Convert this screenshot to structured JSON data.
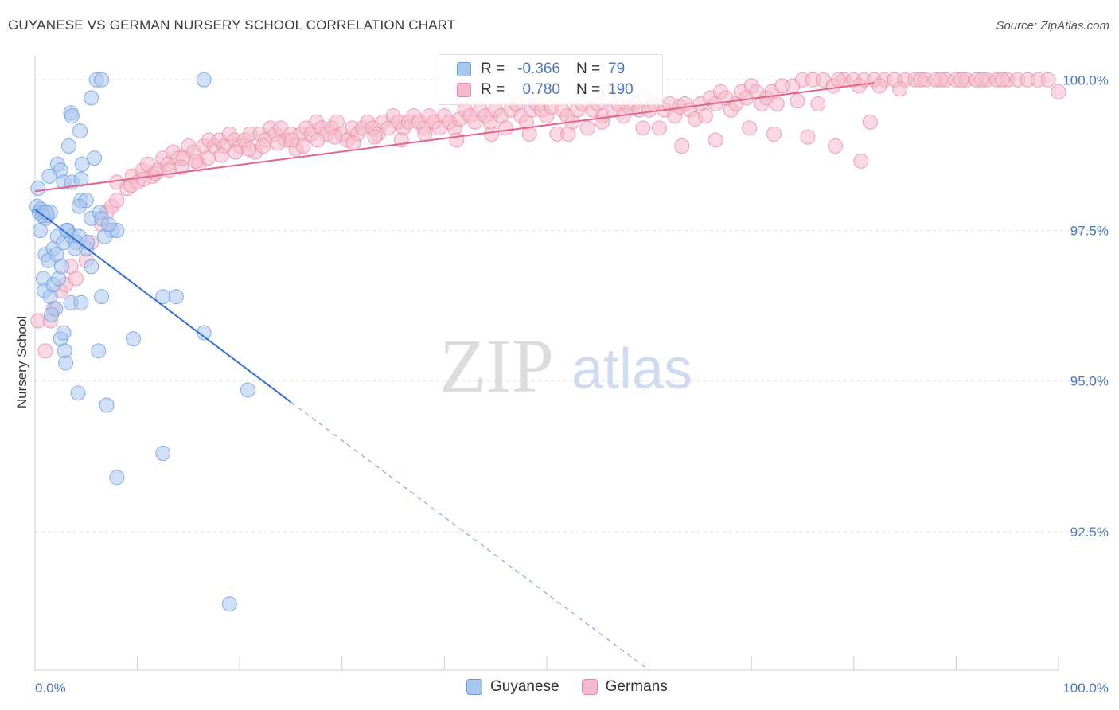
{
  "title": "GUYANESE VS GERMAN NURSERY SCHOOL CORRELATION CHART",
  "source": "Source: ZipAtlas.com",
  "watermark": {
    "zip": "ZIP",
    "atlas": "atlas"
  },
  "legend": {
    "r_label": "R =",
    "n_label": "N =",
    "series": [
      {
        "name": "Guyanese",
        "r": "-0.366",
        "n": "79",
        "fill": "#a9c6ef",
        "stroke": "#6d9be0"
      },
      {
        "name": "Germans",
        "r": "0.780",
        "n": "190",
        "fill": "#f6b9cb",
        "stroke": "#ea8aa7"
      }
    ]
  },
  "chart_data": {
    "type": "scatter",
    "title": "GUYANESE VS GERMAN NURSERY SCHOOL CORRELATION CHART",
    "xlabel": "",
    "ylabel": "Nursery School",
    "xlim": [
      0,
      100
    ],
    "ylim": [
      90.2,
      100.4
    ],
    "x_tick_labels": [
      "0.0%",
      "100.0%"
    ],
    "y_ticks": [
      92.5,
      95.0,
      97.5,
      100.0
    ],
    "y_tick_labels": [
      "92.5%",
      "95.0%",
      "97.5%",
      "100.0%"
    ],
    "series": [
      {
        "name": "Guyanese",
        "color": "#6d9be0",
        "fill": "#a9c6ef",
        "trend": {
          "x0": 0,
          "y0": 97.85,
          "x1": 25,
          "y1": 94.65,
          "dash_to_x": 60,
          "dash_to_y": 90.2
        },
        "points": [
          [
            0.2,
            97.9
          ],
          [
            0.4,
            97.8
          ],
          [
            0.6,
            97.85
          ],
          [
            0.3,
            98.2
          ],
          [
            0.8,
            97.8
          ],
          [
            1.0,
            97.7
          ],
          [
            1.2,
            97.75
          ],
          [
            1.5,
            97.8
          ],
          [
            0.5,
            97.5
          ],
          [
            1.0,
            97.1
          ],
          [
            1.3,
            97.0
          ],
          [
            1.8,
            97.2
          ],
          [
            2.2,
            97.4
          ],
          [
            2.8,
            97.3
          ],
          [
            3.2,
            97.5
          ],
          [
            3.6,
            97.4
          ],
          [
            4.0,
            97.3
          ],
          [
            5.0,
            97.2
          ],
          [
            0.8,
            96.7
          ],
          [
            0.9,
            96.5
          ],
          [
            1.5,
            96.4
          ],
          [
            1.8,
            96.6
          ],
          [
            2.3,
            96.7
          ],
          [
            2.0,
            96.2
          ],
          [
            1.6,
            96.1
          ],
          [
            3.5,
            96.3
          ],
          [
            4.5,
            96.3
          ],
          [
            5.5,
            96.9
          ],
          [
            6.5,
            96.4
          ],
          [
            2.5,
            95.7
          ],
          [
            2.8,
            95.8
          ],
          [
            2.9,
            95.5
          ],
          [
            3.0,
            95.3
          ],
          [
            4.2,
            94.8
          ],
          [
            6.2,
            95.5
          ],
          [
            7.0,
            94.6
          ],
          [
            9.6,
            95.7
          ],
          [
            12.5,
            96.4
          ],
          [
            13.8,
            96.4
          ],
          [
            16.5,
            95.8
          ],
          [
            20.8,
            94.85
          ],
          [
            12.5,
            93.8
          ],
          [
            8.0,
            93.4
          ],
          [
            19.0,
            91.3
          ],
          [
            3.3,
            98.9
          ],
          [
            2.2,
            98.6
          ],
          [
            2.5,
            98.5
          ],
          [
            2.8,
            98.3
          ],
          [
            1.4,
            98.4
          ],
          [
            3.6,
            98.3
          ],
          [
            4.5,
            98.0
          ],
          [
            5.0,
            98.0
          ],
          [
            4.3,
            97.9
          ],
          [
            5.5,
            97.7
          ],
          [
            6.3,
            97.8
          ],
          [
            7.5,
            97.5
          ],
          [
            8.0,
            97.5
          ],
          [
            3.5,
            99.45
          ],
          [
            3.6,
            99.4
          ],
          [
            4.4,
            99.15
          ],
          [
            4.6,
            98.6
          ],
          [
            5.8,
            98.7
          ],
          [
            4.5,
            98.35
          ],
          [
            3.1,
            97.5
          ],
          [
            4.3,
            97.4
          ],
          [
            6.5,
            97.7
          ],
          [
            6.8,
            97.4
          ],
          [
            7.2,
            97.6
          ],
          [
            5.5,
            99.7
          ],
          [
            6.0,
            100.0
          ],
          [
            6.5,
            100.0
          ],
          [
            16.5,
            100.0
          ],
          [
            0.7,
            97.75
          ],
          [
            1.1,
            97.8
          ],
          [
            2.1,
            97.1
          ],
          [
            5.1,
            97.3
          ],
          [
            3.9,
            97.2
          ],
          [
            2.6,
            96.9
          ]
        ]
      },
      {
        "name": "Germans",
        "color": "#ea8aa7",
        "fill": "#f6b9cb",
        "trend": {
          "x0": 0,
          "y0": 98.15,
          "x1": 82,
          "y1": 99.95
        },
        "points": [
          [
            0.3,
            96.0
          ],
          [
            1.0,
            95.5
          ],
          [
            1.5,
            96.0
          ],
          [
            1.8,
            96.2
          ],
          [
            2.5,
            96.5
          ],
          [
            3.0,
            96.6
          ],
          [
            3.5,
            96.9
          ],
          [
            4.0,
            96.7
          ],
          [
            5.0,
            97.0
          ],
          [
            5.5,
            97.3
          ],
          [
            6.5,
            97.6
          ],
          [
            7.0,
            97.8
          ],
          [
            7.5,
            97.9
          ],
          [
            8.0,
            98.0
          ],
          [
            8.0,
            98.3
          ],
          [
            9.0,
            98.2
          ],
          [
            9.5,
            98.4
          ],
          [
            10.0,
            98.3
          ],
          [
            10.5,
            98.5
          ],
          [
            11.0,
            98.6
          ],
          [
            11.5,
            98.4
          ],
          [
            12.0,
            98.5
          ],
          [
            12.5,
            98.7
          ],
          [
            13.0,
            98.6
          ],
          [
            13.5,
            98.8
          ],
          [
            14.0,
            98.7
          ],
          [
            14.5,
            98.7
          ],
          [
            15.0,
            98.9
          ],
          [
            15.5,
            98.8
          ],
          [
            16.0,
            98.6
          ],
          [
            16.5,
            98.9
          ],
          [
            17.0,
            99.0
          ],
          [
            17.5,
            98.9
          ],
          [
            18.0,
            99.0
          ],
          [
            18.5,
            98.9
          ],
          [
            19.0,
            99.1
          ],
          [
            19.5,
            99.0
          ],
          [
            20.0,
            98.9
          ],
          [
            20.5,
            99.0
          ],
          [
            21.0,
            99.1
          ],
          [
            21.5,
            98.8
          ],
          [
            22.0,
            99.1
          ],
          [
            22.5,
            99.0
          ],
          [
            23.0,
            99.2
          ],
          [
            23.5,
            99.1
          ],
          [
            24.0,
            99.2
          ],
          [
            24.5,
            99.0
          ],
          [
            25.0,
            99.1
          ],
          [
            25.5,
            98.85
          ],
          [
            26.0,
            99.1
          ],
          [
            26.5,
            99.2
          ],
          [
            27.0,
            99.1
          ],
          [
            27.5,
            99.3
          ],
          [
            28.0,
            99.2
          ],
          [
            28.5,
            99.1
          ],
          [
            29.0,
            99.2
          ],
          [
            29.5,
            99.3
          ],
          [
            30.0,
            99.1
          ],
          [
            30.5,
            99.0
          ],
          [
            31.0,
            99.2
          ],
          [
            31.5,
            99.1
          ],
          [
            32.0,
            99.2
          ],
          [
            32.5,
            99.3
          ],
          [
            33.0,
            99.2
          ],
          [
            33.5,
            99.1
          ],
          [
            34.0,
            99.3
          ],
          [
            34.5,
            99.2
          ],
          [
            35.0,
            99.4
          ],
          [
            35.5,
            99.3
          ],
          [
            36.0,
            99.2
          ],
          [
            36.5,
            99.3
          ],
          [
            37.0,
            99.4
          ],
          [
            37.5,
            99.3
          ],
          [
            38.0,
            99.2
          ],
          [
            38.5,
            99.4
          ],
          [
            39.0,
            99.3
          ],
          [
            39.5,
            99.2
          ],
          [
            40.0,
            99.4
          ],
          [
            40.5,
            99.3
          ],
          [
            41.0,
            99.2
          ],
          [
            41.5,
            99.35
          ],
          [
            42.0,
            99.5
          ],
          [
            42.5,
            99.4
          ],
          [
            43.0,
            99.3
          ],
          [
            43.5,
            99.5
          ],
          [
            44.0,
            99.4
          ],
          [
            44.5,
            99.3
          ],
          [
            45.0,
            99.5
          ],
          [
            45.5,
            99.4
          ],
          [
            46.0,
            99.2
          ],
          [
            46.5,
            99.5
          ],
          [
            47.0,
            99.6
          ],
          [
            47.5,
            99.4
          ],
          [
            48.0,
            99.3
          ],
          [
            48.5,
            99.5
          ],
          [
            49.0,
            99.6
          ],
          [
            49.5,
            99.5
          ],
          [
            50.0,
            99.4
          ],
          [
            50.5,
            99.55
          ],
          [
            51.0,
            99.1
          ],
          [
            51.5,
            99.5
          ],
          [
            52.0,
            99.4
          ],
          [
            52.5,
            99.3
          ],
          [
            53.0,
            99.5
          ],
          [
            53.5,
            99.6
          ],
          [
            54.0,
            99.2
          ],
          [
            54.5,
            99.5
          ],
          [
            55.0,
            99.6
          ],
          [
            55.5,
            99.4
          ],
          [
            56.0,
            99.7
          ],
          [
            56.5,
            99.5
          ],
          [
            57.0,
            99.6
          ],
          [
            57.5,
            99.4
          ],
          [
            58.0,
            99.55
          ],
          [
            58.5,
            99.6
          ],
          [
            59.0,
            99.5
          ],
          [
            59.5,
            99.7
          ],
          [
            60.0,
            99.5
          ],
          [
            60.5,
            99.6
          ],
          [
            61.0,
            99.2
          ],
          [
            61.5,
            99.5
          ],
          [
            62.0,
            99.6
          ],
          [
            62.5,
            99.4
          ],
          [
            63.0,
            99.55
          ],
          [
            63.5,
            99.6
          ],
          [
            64.0,
            99.5
          ],
          [
            64.5,
            99.35
          ],
          [
            65.0,
            99.6
          ],
          [
            65.5,
            99.4
          ],
          [
            66.0,
            99.7
          ],
          [
            66.5,
            99.6
          ],
          [
            67.0,
            99.8
          ],
          [
            67.5,
            99.7
          ],
          [
            68.0,
            99.5
          ],
          [
            68.5,
            99.6
          ],
          [
            69.0,
            99.8
          ],
          [
            69.5,
            99.7
          ],
          [
            70.0,
            99.9
          ],
          [
            70.5,
            99.8
          ],
          [
            71.0,
            99.6
          ],
          [
            71.5,
            99.7
          ],
          [
            72.0,
            99.8
          ],
          [
            73.0,
            99.9
          ],
          [
            74.0,
            99.9
          ],
          [
            75.0,
            100.0
          ],
          [
            76.0,
            100.0
          ],
          [
            77.0,
            100.0
          ],
          [
            78.0,
            99.9
          ],
          [
            79.0,
            100.0
          ],
          [
            80.0,
            100.0
          ],
          [
            81.0,
            100.0
          ],
          [
            82.0,
            100.0
          ],
          [
            83.0,
            100.0
          ],
          [
            84.0,
            100.0
          ],
          [
            85.0,
            100.0
          ],
          [
            86.0,
            100.0
          ],
          [
            87.0,
            100.0
          ],
          [
            88.0,
            100.0
          ],
          [
            89.0,
            100.0
          ],
          [
            90.0,
            100.0
          ],
          [
            91.0,
            100.0
          ],
          [
            92.0,
            100.0
          ],
          [
            93.0,
            100.0
          ],
          [
            94.0,
            100.0
          ],
          [
            95.0,
            100.0
          ],
          [
            96.0,
            100.0
          ],
          [
            97.0,
            100.0
          ],
          [
            98.0,
            100.0
          ],
          [
            99.0,
            100.0
          ],
          [
            100.0,
            99.8
          ],
          [
            80.5,
            99.9
          ],
          [
            82.5,
            99.9
          ],
          [
            84.5,
            99.85
          ],
          [
            86.5,
            100.0
          ],
          [
            88.5,
            100.0
          ],
          [
            90.5,
            100.0
          ],
          [
            92.5,
            100.0
          ],
          [
            94.5,
            100.0
          ],
          [
            78.5,
            100.0
          ],
          [
            76.5,
            99.6
          ],
          [
            74.5,
            99.65
          ],
          [
            72.5,
            99.6
          ],
          [
            75.5,
            99.05
          ],
          [
            78.2,
            98.9
          ],
          [
            80.7,
            98.65
          ],
          [
            81.6,
            99.3
          ],
          [
            72.2,
            99.1
          ],
          [
            69.8,
            99.2
          ],
          [
            66.5,
            99.0
          ],
          [
            63.2,
            98.9
          ],
          [
            59.4,
            99.2
          ],
          [
            55.4,
            99.3
          ],
          [
            52.1,
            99.1
          ],
          [
            48.3,
            99.1
          ],
          [
            44.6,
            99.1
          ],
          [
            41.2,
            99.0
          ],
          [
            38.1,
            99.1
          ],
          [
            35.8,
            99.0
          ],
          [
            33.2,
            99.05
          ],
          [
            31.1,
            98.95
          ],
          [
            29.3,
            99.05
          ],
          [
            27.6,
            99.0
          ],
          [
            26.2,
            98.9
          ],
          [
            25.1,
            99.0
          ],
          [
            23.7,
            98.95
          ],
          [
            22.3,
            98.9
          ],
          [
            20.9,
            98.85
          ],
          [
            19.6,
            98.8
          ],
          [
            18.2,
            98.75
          ],
          [
            16.9,
            98.7
          ],
          [
            15.7,
            98.65
          ],
          [
            14.3,
            98.55
          ],
          [
            13.1,
            98.5
          ],
          [
            11.8,
            98.45
          ],
          [
            10.6,
            98.35
          ],
          [
            9.4,
            98.25
          ]
        ]
      }
    ]
  }
}
